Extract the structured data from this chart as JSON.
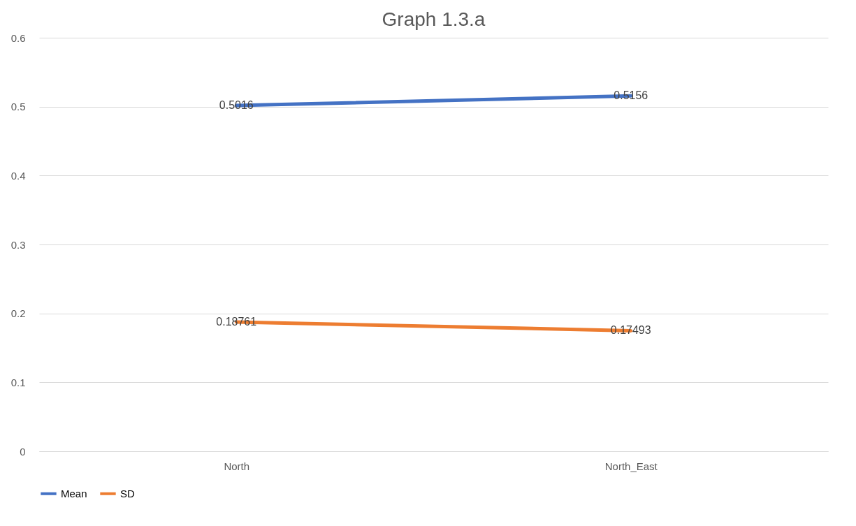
{
  "chart_data": {
    "type": "line",
    "title": "Graph 1.3.a",
    "categories": [
      "North",
      "North_East"
    ],
    "series": [
      {
        "name": "Mean",
        "color": "#4472c4",
        "values": [
          0.5016,
          0.5156
        ]
      },
      {
        "name": "SD",
        "color": "#ed7d31",
        "values": [
          0.18761,
          0.17493
        ]
      }
    ],
    "ylim": [
      0,
      0.6
    ],
    "yticks": [
      0,
      0.1,
      0.2,
      0.3,
      0.4,
      0.5,
      0.6
    ],
    "grid": "y",
    "legend": "bottom",
    "data_labels": true
  }
}
